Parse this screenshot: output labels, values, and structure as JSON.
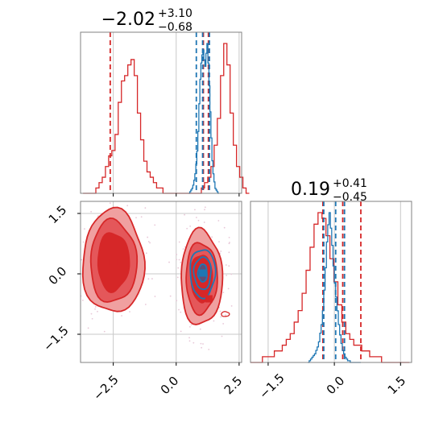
{
  "colors": {
    "red": "#d62728",
    "blue": "#1f77b4",
    "red_fill": "#f0a0a0",
    "red_fill_mid": "#e4575a",
    "grid": "#c8c8c8",
    "axis": "#808080"
  },
  "chart_data": [
    {
      "type": "histogram",
      "panel": "top-left marginal (parameter 1)",
      "title": {
        "median": "−2.02",
        "plus": "+3.10",
        "minus": "−0.68"
      },
      "xlim": [
        -3.8,
        2.6
      ],
      "grid": true,
      "series": [
        {
          "color": "red",
          "bin_start": -3.7,
          "bin_width": 0.127,
          "counts": [
            0,
            0,
            0,
            0,
            1,
            2,
            3,
            5,
            7,
            8,
            11,
            17,
            21,
            22,
            24,
            25,
            22,
            15,
            10,
            6,
            4,
            3,
            2,
            1,
            1,
            0,
            0,
            0,
            0,
            0,
            0,
            0,
            0,
            0,
            0,
            0,
            0,
            1,
            2,
            3,
            5,
            9,
            14,
            22,
            28,
            24,
            15,
            9,
            5,
            3,
            1,
            0
          ],
          "quantiles": [
            -2.62,
            1.08,
            1.28
          ]
        },
        {
          "color": "blue",
          "bin_start": 0.5,
          "bin_width": 0.04,
          "counts": [
            0,
            1,
            2,
            3,
            5,
            8,
            12,
            18,
            26,
            38,
            55,
            70,
            80,
            85,
            88,
            82,
            78,
            86,
            92,
            80,
            66,
            50,
            34,
            20,
            12,
            7,
            3,
            2,
            1,
            0
          ],
          "quantiles": [
            0.8,
            1.05,
            1.32
          ]
        }
      ]
    },
    {
      "type": "histogram",
      "panel": "bottom-right marginal (parameter 2)",
      "title": {
        "median": "0.19",
        "plus": "+0.41",
        "minus": "−0.45"
      },
      "xlim": [
        -1.9,
        1.75
      ],
      "xticks": [
        "−1.5",
        "0.0",
        "1.5"
      ],
      "grid": true,
      "series": [
        {
          "color": "red",
          "bin_start": -1.9,
          "bin_width": 0.09,
          "counts": [
            0,
            0,
            0,
            1,
            1,
            1,
            2,
            2,
            3,
            4,
            5,
            7,
            9,
            12,
            16,
            20,
            24,
            26,
            25,
            22,
            18,
            14,
            10,
            7,
            5,
            4,
            3,
            3,
            2,
            2,
            1,
            1,
            1,
            0,
            0,
            0,
            0,
            0,
            0,
            0
          ],
          "quantiles": [
            -0.26,
            0.6,
            0.19
          ]
        },
        {
          "color": "blue",
          "bin_start": -0.6,
          "bin_width": 0.03,
          "counts": [
            0,
            1,
            2,
            3,
            4,
            5,
            7,
            9,
            12,
            17,
            22,
            30,
            42,
            55,
            70,
            80,
            87,
            78,
            68,
            56,
            46,
            38,
            30,
            22,
            16,
            11,
            7,
            5,
            3,
            2,
            1,
            1,
            0,
            0,
            0,
            0,
            0,
            0,
            0,
            0
          ],
          "quantiles": [
            -0.24,
            0.03,
            0.23
          ]
        }
      ]
    },
    {
      "type": "contour",
      "panel": "bottom-left 2D joint (param 1 vs param 2)",
      "xlim": [
        -3.8,
        2.6
      ],
      "ylim": [
        -2.2,
        1.8
      ],
      "xticks": [
        "−2.5",
        "0.0",
        "2.5"
      ],
      "yticks": [
        "1.5",
        "0.0",
        "−1.5"
      ],
      "grid": true,
      "red_modes": [
        {
          "cx": -2.5,
          "cy": 0.3,
          "rx": [
            1.22,
            0.92,
            0.62
          ],
          "ry": [
            1.28,
            1.02,
            0.72
          ]
        },
        {
          "cx": 1.0,
          "cy": -0.1,
          "rx": [
            0.82,
            0.62,
            0.42
          ],
          "ry": [
            1.18,
            0.88,
            0.58
          ]
        }
      ],
      "blue_mode": {
        "cx": 1.05,
        "cy": 0.02,
        "rx": [
          0.5,
          0.34,
          0.18
        ],
        "ry": [
          0.6,
          0.4,
          0.22
        ]
      },
      "markers": [
        {
          "color": "red",
          "x": -2.5,
          "y": 0.3
        },
        {
          "color": "red",
          "x": 1.3,
          "y": -0.62
        },
        {
          "color": "blue",
          "x": 1.05,
          "y": 0.02
        }
      ]
    }
  ]
}
